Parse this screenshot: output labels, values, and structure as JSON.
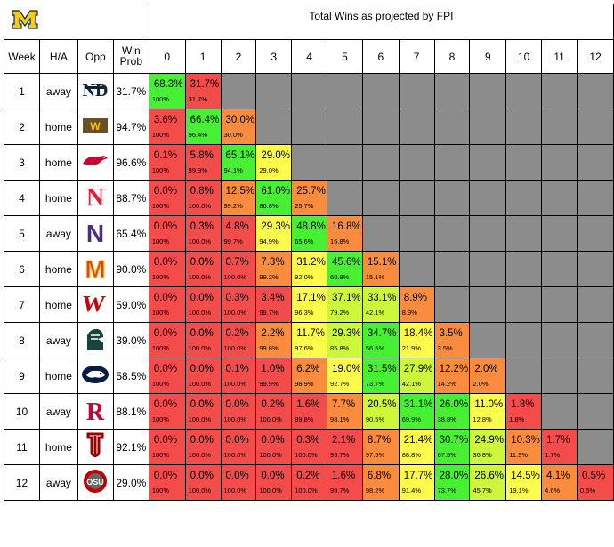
{
  "header": {
    "title": "Total Wins as projected by FPI",
    "columns": [
      "Week",
      "H/A",
      "Opp",
      "Win Prob"
    ]
  },
  "colors": {
    "red": "#f44b4b",
    "orange": "#fb8c3e",
    "yellow": "#fefb4a",
    "lime": "#cdf73a",
    "green": "#48f034",
    "gray": "#8c8c8c",
    "michigan_maize": "#fccb0b",
    "michigan_blue": "#00274c"
  },
  "chart_data": {
    "type": "table",
    "title": "Total Wins as projected by FPI",
    "win_totals": [
      "0",
      "1",
      "2",
      "3",
      "4",
      "5",
      "6",
      "7",
      "8",
      "9",
      "10",
      "11",
      "12"
    ],
    "rows": [
      {
        "week": "1",
        "ha": "away",
        "opp": "notre-dame",
        "win_prob": "31.7%",
        "pct": [
          "68.3%",
          "31.7%"
        ],
        "cum": [
          "100%",
          "31.7%"
        ],
        "colors": [
          "green",
          "red"
        ]
      },
      {
        "week": "2",
        "ha": "home",
        "opp": "western-michigan",
        "win_prob": "94.7%",
        "pct": [
          "3.6%",
          "66.4%",
          "30.0%"
        ],
        "cum": [
          "100%",
          "96.4%",
          "30.0%"
        ],
        "colors": [
          "red",
          "green",
          "orange"
        ]
      },
      {
        "week": "3",
        "ha": "home",
        "opp": "smu",
        "win_prob": "96.6%",
        "pct": [
          "0.1%",
          "5.8%",
          "65.1%",
          "29.0%"
        ],
        "cum": [
          "100%",
          "99.9%",
          "94.1%",
          "29.0%"
        ],
        "colors": [
          "red",
          "red",
          "green",
          "yellow"
        ]
      },
      {
        "week": "4",
        "ha": "home",
        "opp": "nebraska",
        "win_prob": "88.7%",
        "pct": [
          "0.0%",
          "0.8%",
          "12.5%",
          "61.0%",
          "25.7%"
        ],
        "cum": [
          "100%",
          "100.0%",
          "99.2%",
          "86.8%",
          "25.7%"
        ],
        "colors": [
          "red",
          "red",
          "orange",
          "green",
          "orange"
        ]
      },
      {
        "week": "5",
        "ha": "away",
        "opp": "northwestern",
        "win_prob": "65.4%",
        "pct": [
          "0.0%",
          "0.3%",
          "4.8%",
          "29.3%",
          "48.8%",
          "16.8%"
        ],
        "cum": [
          "100%",
          "100.0%",
          "99.7%",
          "94.9%",
          "65.6%",
          "16.8%"
        ],
        "colors": [
          "red",
          "red",
          "red",
          "yellow",
          "green",
          "orange"
        ]
      },
      {
        "week": "6",
        "ha": "home",
        "opp": "maryland",
        "win_prob": "90.0%",
        "pct": [
          "0.0%",
          "0.0%",
          "0.7%",
          "7.3%",
          "31.2%",
          "45.6%",
          "15.1%"
        ],
        "cum": [
          "100%",
          "100.0%",
          "100.0%",
          "99.2%",
          "92.0%",
          "60.8%",
          "15.1%"
        ],
        "colors": [
          "red",
          "red",
          "red",
          "orange",
          "yellow",
          "green",
          "orange"
        ]
      },
      {
        "week": "7",
        "ha": "home",
        "opp": "wisconsin",
        "win_prob": "59.0%",
        "pct": [
          "0.0%",
          "0.0%",
          "0.3%",
          "3.4%",
          "17.1%",
          "37.1%",
          "33.1%",
          "8.9%"
        ],
        "cum": [
          "100%",
          "100.0%",
          "100.0%",
          "99.7%",
          "96.3%",
          "79.2%",
          "42.1%",
          "8.9%"
        ],
        "colors": [
          "red",
          "red",
          "red",
          "red",
          "yellow",
          "lime",
          "lime",
          "orange"
        ]
      },
      {
        "week": "8",
        "ha": "away",
        "opp": "michigan-state",
        "win_prob": "39.0%",
        "pct": [
          "0.0%",
          "0.0%",
          "0.2%",
          "2.2%",
          "11.7%",
          "29.3%",
          "34.7%",
          "18.4%",
          "3.5%"
        ],
        "cum": [
          "100%",
          "100.0%",
          "100.0%",
          "99.8%",
          "97.6%",
          "85.8%",
          "56.5%",
          "21.9%",
          "3.5%"
        ],
        "colors": [
          "red",
          "red",
          "red",
          "orange",
          "yellow",
          "lime",
          "green",
          "yellow",
          "orange"
        ]
      },
      {
        "week": "9",
        "ha": "home",
        "opp": "penn-state",
        "win_prob": "58.5%",
        "pct": [
          "0.0%",
          "0.0%",
          "0.1%",
          "1.0%",
          "6.2%",
          "19.0%",
          "31.5%",
          "27.9%",
          "12.2%",
          "2.0%"
        ],
        "cum": [
          "100%",
          "100.0%",
          "100.0%",
          "99.9%",
          "98.9%",
          "92.7%",
          "73.7%",
          "42.1%",
          "14.2%",
          "2.0%"
        ],
        "colors": [
          "red",
          "red",
          "red",
          "red",
          "orange",
          "yellow",
          "green",
          "lime",
          "orange",
          "orange"
        ]
      },
      {
        "week": "10",
        "ha": "away",
        "opp": "rutgers",
        "win_prob": "88.1%",
        "pct": [
          "0.0%",
          "0.0%",
          "0.0%",
          "0.2%",
          "1.6%",
          "7.7%",
          "20.5%",
          "31.1%",
          "26.0%",
          "11.0%",
          "1.8%"
        ],
        "cum": [
          "100%",
          "100.0%",
          "100.0%",
          "100.0%",
          "99.8%",
          "98.1%",
          "90.5%",
          "69.9%",
          "38.8%",
          "12.8%",
          "1.8%"
        ],
        "colors": [
          "red",
          "red",
          "red",
          "red",
          "red",
          "orange",
          "lime",
          "green",
          "green",
          "yellow",
          "red"
        ]
      },
      {
        "week": "11",
        "ha": "home",
        "opp": "indiana",
        "win_prob": "92.1%",
        "pct": [
          "0.0%",
          "0.0%",
          "0.0%",
          "0.0%",
          "0.3%",
          "2.1%",
          "8.7%",
          "21.4%",
          "30.7%",
          "24.9%",
          "10.3%",
          "1.7%"
        ],
        "cum": [
          "100%",
          "100.0%",
          "100.0%",
          "100.0%",
          "100.0%",
          "99.7%",
          "97.5%",
          "88.8%",
          "67.5%",
          "36.8%",
          "11.9%",
          "1.7%"
        ],
        "colors": [
          "red",
          "red",
          "red",
          "red",
          "red",
          "red",
          "orange",
          "yellow",
          "green",
          "lime",
          "orange",
          "red"
        ]
      },
      {
        "week": "12",
        "ha": "away",
        "opp": "ohio-state",
        "win_prob": "29.0%",
        "pct": [
          "0.0%",
          "0.0%",
          "0.0%",
          "0.0%",
          "0.2%",
          "1.6%",
          "6.8%",
          "17.7%",
          "28.0%",
          "26.6%",
          "14.5%",
          "4.1%",
          "0.5%"
        ],
        "cum": [
          "100%",
          "100.0%",
          "100.0%",
          "100.0%",
          "100.0%",
          "99.7%",
          "98.2%",
          "91.4%",
          "73.7%",
          "45.7%",
          "19.1%",
          "4.6%",
          "0.5%"
        ],
        "colors": [
          "red",
          "red",
          "red",
          "red",
          "red",
          "red",
          "orange",
          "yellow",
          "green",
          "lime",
          "yellow",
          "orange",
          "red"
        ]
      }
    ]
  }
}
